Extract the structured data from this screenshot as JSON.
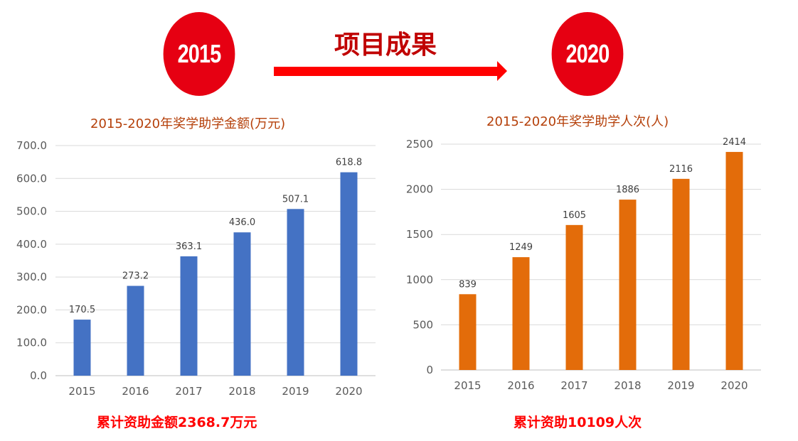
{
  "header": {
    "start_year": "2015",
    "end_year": "2020",
    "title": "项目成果"
  },
  "totals": {
    "amount": "累计资助金额2368.7万元",
    "people": "累计资助10109人次"
  },
  "colors": {
    "circle": "#e60012",
    "arrow": "#ff0000",
    "title": "#c00000",
    "chart_title": "#b5400a",
    "bar_amount": "#4472c4",
    "bar_people": "#e36c0a"
  },
  "chart_data": [
    {
      "type": "bar",
      "title": "2015-2020年奖学助学金额(万元)",
      "categories": [
        "2015",
        "2016",
        "2017",
        "2018",
        "2019",
        "2020"
      ],
      "values": [
        170.5,
        273.2,
        363.1,
        436.0,
        507.1,
        618.8
      ],
      "data_labels": [
        "170.5",
        "273.2",
        "363.1",
        "436.0",
        "507.1",
        "618.8"
      ],
      "yticks": [
        "0.0",
        "100.0",
        "200.0",
        "300.0",
        "400.0",
        "500.0",
        "600.0",
        "700.0"
      ],
      "ylim": [
        0,
        700
      ],
      "grid": true,
      "color": "#4472c4"
    },
    {
      "type": "bar",
      "title": "2015-2020年奖学助学人次(人)",
      "categories": [
        "2015",
        "2016",
        "2017",
        "2018",
        "2019",
        "2020"
      ],
      "values": [
        839,
        1249,
        1605,
        1886,
        2116,
        2414
      ],
      "data_labels": [
        "839",
        "1249",
        "1605",
        "1886",
        "2116",
        "2414"
      ],
      "yticks": [
        "0",
        "500",
        "1000",
        "1500",
        "2000",
        "2500"
      ],
      "ylim": [
        0,
        2500
      ],
      "grid": true,
      "color": "#e36c0a"
    }
  ]
}
